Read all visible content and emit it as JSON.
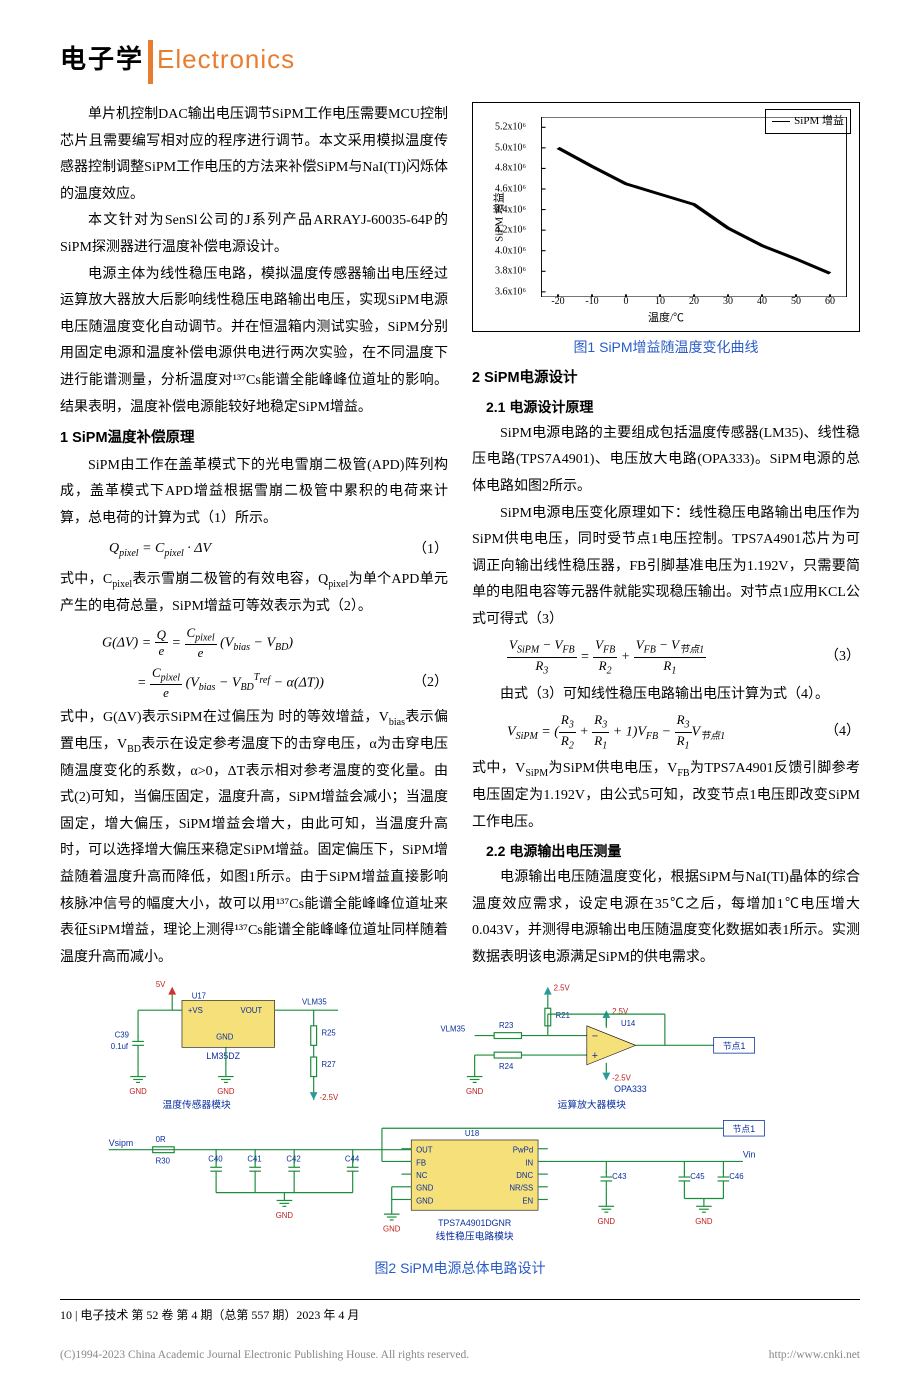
{
  "header": {
    "cn": "电子学",
    "en": "Electronics"
  },
  "left": {
    "p1": "单片机控制DAC输出电压调节SiPM工作电压需要MCU控制芯片且需要编写相对应的程序进行调节。本文采用模拟温度传感器控制调整SiPM工作电压的方法来补偿SiPM与NaI(TI)闪烁体的温度效应。",
    "p2": "本文针对为SenSl公司的J系列产品ARRAYJ-60035-64P的SiPM探测器进行温度补偿电源设计。",
    "p3": "电源主体为线性稳压电路，模拟温度传感器输出电压经过运算放大器放大后影响线性稳压电路输出电压，实现SiPM电源电压随温度变化自动调节。并在恒温箱内测试实验，SiPM分别用固定电源和温度补偿电源供电进行两次实验，在不同温度下进行能谱测量，分析温度对¹³⁷Cs能谱全能峰峰位道址的影响。结果表明，温度补偿电源能较好地稳定SiPM增益。",
    "s1": "1  SiPM温度补偿原理",
    "p4": "SiPM由工作在盖革模式下的光电雪崩二极管(APD)阵列构成，盖革模式下APD增益根据雪崩二极管中累积的电荷来计算，总电荷的计算为式（1）所示。",
    "eq1": {
      "body": "Q<sub>pixel</sub> = C<sub>pixel</sub> · ΔV",
      "num": "（1）"
    },
    "p5": "式中，C<sub>pixel</sub>表示雪崩二极管的有效电容，Q<sub>pixel</sub>为单个APD单元产生的电荷总量，SiPM增益可等效表示为式（2）。",
    "eq2a": "G(ΔV) = <span class=\"frac\"><span class=\"n\">Q</span><span class=\"d\">e</span></span> = <span class=\"frac\"><span class=\"n\">C<sub>pixel</sub></span><span class=\"d\">e</span></span> (V<sub>bias</sub> − V<sub>BD</sub>)",
    "eq2b": "= <span class=\"frac\"><span class=\"n\">C<sub>pixel</sub></span><span class=\"d\">e</span></span> (V<sub>bias</sub> − V<sub>BD</sub><sup style=\"font-style:italic\">T<sub>ref</sub></sup> − α(ΔT))",
    "eq2num": "（2）",
    "p6": "式中，G(ΔV)表示SiPM在过偏压为 时的等效增益，V<sub>bias</sub>表示偏置电压，V<sub>BD</sub>表示在设定参考温度下的击穿电压，α为击穿电压随温度变化的系数，α>0，ΔT表示相对参考温度的变化量。由式(2)可知，当偏压固定，温度升高，SiPM增益会减小；当温度固定，增大偏压，SiPM增益会增大，由此可知，当温度升高时，可以选择增大偏压来稳定SiPM增益。固定偏压下，SiPM增益随着温度升高而降低，如图1所示。由于SiPM增益直接影响核脉冲信号的幅度大小，故可以用¹³⁷Cs能谱全能峰峰位道址来表征SiPM增益，理论上测得¹³⁷Cs能谱全能峰峰位道址同样随着温度升高而减小。"
  },
  "right": {
    "chart": {
      "legend": "SiPM 增益",
      "ylabel": "SiPM 增益",
      "xlabel": "温度/℃",
      "yticks": [
        "3.6x10⁶",
        "3.8x10⁶",
        "4.0x10⁶",
        "4.2x10⁶",
        "4.4x10⁶",
        "4.6x10⁶",
        "4.8x10⁶",
        "5.0x10⁶",
        "5.2x10⁶"
      ],
      "ytick_values": [
        3.6,
        3.8,
        4.0,
        4.2,
        4.4,
        4.6,
        4.8,
        5.0,
        5.2
      ],
      "xticks": [
        "-20",
        "-10",
        "0",
        "10",
        "20",
        "30",
        "40",
        "50",
        "60"
      ],
      "xtick_values": [
        -20,
        -10,
        0,
        10,
        20,
        30,
        40,
        50,
        60
      ],
      "xlim": [
        -25,
        65
      ],
      "ylim": [
        3.55,
        5.3
      ],
      "points": [
        [
          -20,
          5.0
        ],
        [
          -10,
          4.82
        ],
        [
          0,
          4.65
        ],
        [
          10,
          4.55
        ],
        [
          20,
          4.45
        ],
        [
          30,
          4.22
        ],
        [
          40,
          4.05
        ],
        [
          50,
          3.92
        ],
        [
          60,
          3.78
        ]
      ],
      "line_color": "#000000",
      "line_width": 1.5,
      "marker": "none",
      "background": "#ffffff",
      "border_color": "#000000"
    },
    "fig1": "图1  SiPM增益随温度变化曲线",
    "s2": "2  SiPM电源设计",
    "s21": "2.1 电源设计原理",
    "p1": "SiPM电源电路的主要组成包括温度传感器(LM35)、线性稳压电路(TPS7A4901)、电压放大电路(OPA333)。SiPM电源的总体电路如图2所示。",
    "p2": "SiPM电源电压变化原理如下：线性稳压电路输出电压作为SiPM供电电压，同时受节点1电压控制。TPS7A4901芯片为可调正向输出线性稳压器，FB引脚基准电压为1.192V，只需要简单的电阻电容等元器件就能实现稳压输出。对节点1应用KCL公式可得式（3）",
    "eq3": "<span class=\"frac\"><span class=\"n\">V<sub>SiPM</sub> − V<sub>FB</sub></span><span class=\"d\">R<sub>3</sub></span></span> = <span class=\"frac\"><span class=\"n\">V<sub>FB</sub></span><span class=\"d\">R<sub>2</sub></span></span> + <span class=\"frac\"><span class=\"n\">V<sub>FB</sub> − V<sub>节点1</sub></span><span class=\"d\">R<sub>1</sub></span></span>",
    "eq3num": "（3）",
    "p3": "由式（3）可知线性稳压电路输出电压计算为式（4）。",
    "eq4": "V<sub>SiPM</sub> = (<span class=\"frac\"><span class=\"n\">R<sub>3</sub></span><span class=\"d\">R<sub>2</sub></span></span> + <span class=\"frac\"><span class=\"n\">R<sub>3</sub></span><span class=\"d\">R<sub>1</sub></span></span> + 1)V<sub>FB</sub> − <span class=\"frac\"><span class=\"n\">R<sub>3</sub></span><span class=\"d\">R<sub>1</sub></span></span>V<sub>节点1</sub>",
    "eq4num": "（4）",
    "p4": "式中，V<sub>SiPM</sub>为SiPM供电电压，V<sub>FB</sub>为TPS7A4901反馈引脚参考电压固定为1.192V，由公式5可知，改变节点1电压即改变SiPM工作电压。",
    "s22": "2.2 电源输出电压测量",
    "p5": "电源输出电压随温度变化，根据SiPM与NaI(TI)晶体的综合温度效应需求，设定电源在35℃之后，每增加1℃电压增大0.043V，并测得电源输出电压随温度变化数据如表1所示。实测数据表明该电源满足SiPM的供电需求。"
  },
  "circuit": {
    "fig2": "图2  SiPM电源总体电路设计",
    "colors": {
      "wire_green": "#1a8c3a",
      "ic_yellow": "#f5e07a",
      "text_blue": "#0a2f9e",
      "text_red": "#c02020",
      "tri_red": "#d03030",
      "power_teal": "#2a9a9a",
      "bg": "#ffffff"
    },
    "labels": {
      "u17": "U17",
      "vs": "+VS",
      "vout": "VOUT",
      "gnd": "GND",
      "lm35": "LM35DZ",
      "tempmod": "温度传感器模块",
      "c39": "C39",
      "c39v": "0.1uf",
      "r25": "R25",
      "r27": "R27",
      "p25v": "2.5V",
      "n25v": "-2.5V",
      "vlm35": "VLM35",
      "r21": "R21",
      "r23": "R23",
      "r24": "R24",
      "u14": "U14",
      "opa333": "OPA333",
      "ampmod": "运算放大器模块",
      "node1": "节点1",
      "vsipm": "Vsipm",
      "zeroR": "0R",
      "r30": "R30",
      "c40": "C40",
      "c41": "C41",
      "c42": "C42",
      "c44": "C44",
      "u18": "U18",
      "out": "OUT",
      "fb": "FB",
      "nc": "NC",
      "gnd2": "GND",
      "gnd3": "GND",
      "pwpd": "PwPd",
      "in": "IN",
      "dnc": "DNC",
      "nrss": "NR/SS",
      "en": "EN",
      "tps": "TPS7A4901DGNR",
      "linmod": "线性稳压电路模块",
      "vin": "Vin",
      "c43": "C43",
      "c45": "C45",
      "c46": "C46",
      "p5v": "5V"
    }
  },
  "footer": {
    "line": "10 | 电子技术  第 52 卷 第 4 期（总第 557 期）2023 年 4 月",
    "copy": "(C)1994-2023 China Academic Journal Electronic Publishing House. All rights reserved.",
    "url": "http://www.cnki.net"
  }
}
